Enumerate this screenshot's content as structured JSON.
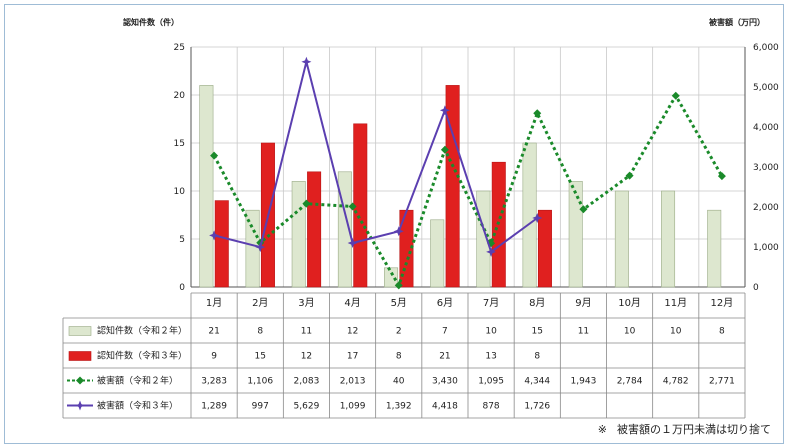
{
  "chart_data": {
    "type": "bar",
    "left_axis_title": "認知件数（件）",
    "right_axis_title": "被害額（万円）",
    "categories": [
      "1月",
      "2月",
      "3月",
      "4月",
      "5月",
      "6月",
      "7月",
      "8月",
      "9月",
      "10月",
      "11月",
      "12月"
    ],
    "y_left": {
      "min": 0,
      "max": 25,
      "ticks": [
        "0",
        "5",
        "10",
        "15",
        "20",
        "25"
      ]
    },
    "y_right": {
      "min": 0,
      "max": 6000,
      "ticks": [
        "0",
        "1,000",
        "2,000",
        "3,000",
        "4,000",
        "5,000",
        "6,000"
      ]
    },
    "bar_series": [
      {
        "name": "認知件数（令和２年）",
        "color": "#dde7cf",
        "border": "#9aaa86",
        "values": [
          21,
          8,
          11,
          12,
          2,
          7,
          10,
          15,
          11,
          10,
          10,
          8
        ],
        "labels": [
          "21",
          "8",
          "11",
          "12",
          "2",
          "7",
          "10",
          "15",
          "11",
          "10",
          "10",
          "8"
        ]
      },
      {
        "name": "認知件数（令和３年）",
        "color": "#e0201f",
        "border": "#b81414",
        "values": [
          9,
          15,
          12,
          17,
          8,
          21,
          13,
          8,
          null,
          null,
          null,
          null
        ],
        "labels": [
          "9",
          "15",
          "12",
          "17",
          "8",
          "21",
          "13",
          "8",
          "",
          "",
          "",
          ""
        ]
      }
    ],
    "line_series": [
      {
        "name": "被害額（令和２年）",
        "color": "#1a8a2a",
        "style": "dotted",
        "marker": "diamond",
        "values": [
          3283,
          1106,
          2083,
          2013,
          40,
          3430,
          1095,
          4344,
          1943,
          2784,
          4782,
          2771
        ],
        "labels": [
          "3,283",
          "1,106",
          "2,083",
          "2,013",
          "40",
          "3,430",
          "1,095",
          "4,344",
          "1,943",
          "2,784",
          "4,782",
          "2,771"
        ]
      },
      {
        "name": "被害額（令和３年）",
        "color": "#5b3fb0",
        "style": "solid",
        "marker": "star",
        "values": [
          1289,
          997,
          5629,
          1099,
          1392,
          4418,
          878,
          1726,
          null,
          null,
          null,
          null
        ],
        "labels": [
          "1,289",
          "997",
          "5,629",
          "1,099",
          "1,392",
          "4,418",
          "878",
          "1,726",
          "",
          "",
          "",
          ""
        ]
      }
    ],
    "grid": true
  },
  "footnote": {
    "mark": "※",
    "text": "被害額の１万円未満は切り捨て"
  }
}
